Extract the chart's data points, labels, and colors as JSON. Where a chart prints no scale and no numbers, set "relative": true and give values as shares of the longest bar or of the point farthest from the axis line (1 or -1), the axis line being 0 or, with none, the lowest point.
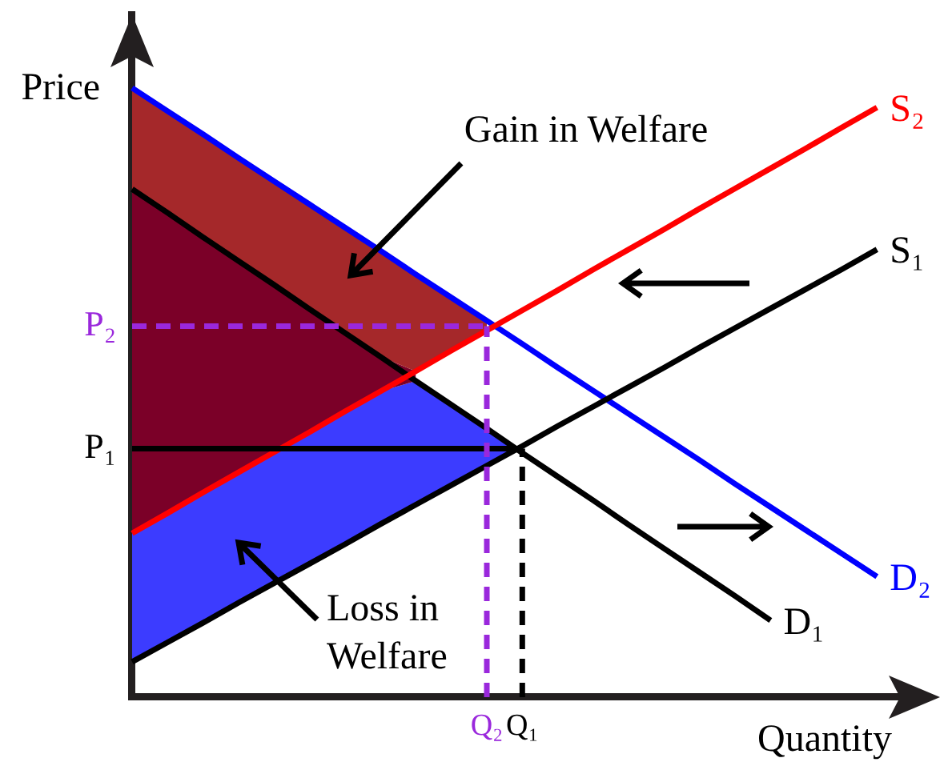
{
  "chart_data": {
    "type": "line",
    "relative": true,
    "xlabel": "Quantity",
    "ylabel": "Price",
    "annotations": [
      "Gain in Welfare",
      "Loss in Welfare"
    ],
    "categories": [
      null,
      null,
      null,
      null,
      null,
      null,
      null,
      null,
      null,
      null,
      "Q₂",
      "Q₁",
      null,
      null,
      null,
      null,
      null,
      null,
      null,
      null,
      null,
      null,
      null
    ],
    "series": [
      {
        "type": "area",
        "color": "#a5282a",
        "values": [
          1.0,
          0.962,
          0.924,
          0.885,
          0.847,
          0.809,
          0.771,
          0.733,
          0.694,
          0.656,
          0.618,
          null,
          null,
          null,
          null,
          null,
          null,
          null,
          null,
          null,
          null,
          null,
          null
        ]
      },
      {
        "type": "area",
        "color": "#7b0028",
        "values": [
          0.834,
          0.795,
          0.755,
          0.716,
          0.677,
          0.637,
          0.598,
          0.559,
          0.535,
          null,
          null,
          null,
          null,
          null,
          null,
          null,
          null,
          null,
          null,
          null,
          null,
          null,
          null
        ]
      },
      {
        "type": "area",
        "color": "#3c3cff",
        "values": [
          0.269,
          0.302,
          0.336,
          0.369,
          0.402,
          0.435,
          0.469,
          0.502,
          0.519,
          0.48,
          0.441,
          0.401,
          null,
          null,
          null,
          null,
          null,
          null,
          null,
          null,
          null,
          null,
          null
        ]
      },
      {
        "name": "S₂",
        "color": "#ff0000",
        "values": [
          0.269,
          0.302,
          0.336,
          0.369,
          0.402,
          0.435,
          0.469,
          0.502,
          0.535,
          0.569,
          0.602,
          0.635,
          0.668,
          0.702,
          0.735,
          0.768,
          0.802,
          0.835,
          0.868,
          0.901,
          0.935,
          0.968,
          null
        ]
      },
      {
        "name": "S₁",
        "color": "#000000",
        "values": [
          0.058,
          0.09,
          0.122,
          0.155,
          0.187,
          0.219,
          0.251,
          0.284,
          0.316,
          0.348,
          0.38,
          0.412,
          0.445,
          0.477,
          0.509,
          0.541,
          0.574,
          0.606,
          0.638,
          0.67,
          0.702,
          0.735,
          null
        ]
      },
      {
        "name": "D₂",
        "color": "#0000ff",
        "values": [
          1.0,
          0.962,
          0.924,
          0.885,
          0.847,
          0.809,
          0.771,
          0.733,
          0.694,
          0.656,
          0.618,
          0.58,
          0.541,
          0.503,
          0.465,
          0.427,
          0.389,
          0.35,
          0.312,
          0.274,
          0.236,
          0.198,
          null
        ]
      },
      {
        "name": "D₁",
        "color": "#000000",
        "values": [
          0.834,
          0.795,
          0.755,
          0.716,
          0.677,
          0.637,
          0.598,
          0.559,
          0.519,
          0.48,
          0.441,
          0.401,
          0.362,
          0.323,
          0.283,
          0.244,
          0.205,
          0.166,
          0.126,
          null,
          null,
          null,
          null
        ]
      }
    ],
    "ref_lines": [
      {
        "axis": "y",
        "value": 0.609,
        "label": "P₂",
        "color": "#9a28dc",
        "line_style": "dashed"
      },
      {
        "axis": "y",
        "value": 0.408,
        "label": "P₁",
        "color": "#000000",
        "line_style": "solid"
      },
      {
        "axis": "x",
        "value": "Q₂",
        "color": "#9a28dc",
        "line_style": "dashed"
      },
      {
        "axis": "x",
        "value": "Q₁",
        "color": "#000000",
        "line_style": "dashed"
      }
    ]
  }
}
